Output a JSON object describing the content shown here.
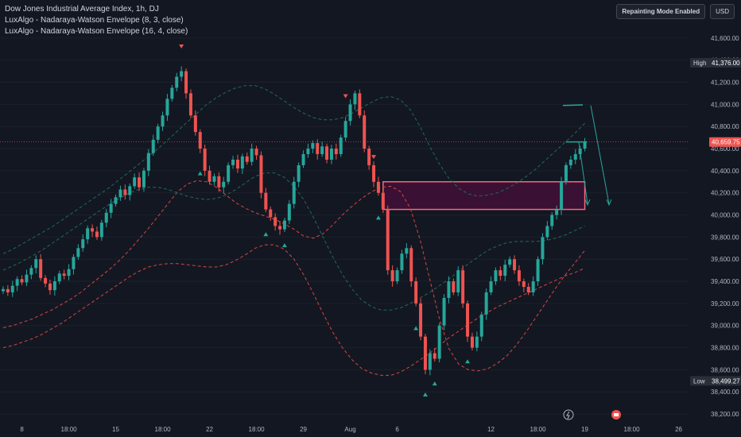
{
  "legend": {
    "title": "Dow Jones Industrial Average Index, 1h, DJ",
    "indicator1": "LuxAlgo - Nadaraya-Watson Envelope (8, 3, close)",
    "indicator2": "LuxAlgo - Nadaraya-Watson Envelope (16, 4, close)"
  },
  "top_right": {
    "mode_label": "Repainting Mode Enabled",
    "currency": "USD"
  },
  "colors": {
    "background": "#131722",
    "up": "#26a69a",
    "down": "#ef5350",
    "upper_band": "#1f6b57",
    "lower_band": "#d4473f",
    "zone_border": "#f26b7a",
    "zone_fill": "#3a1035",
    "text": "#b2b5be",
    "price_tag": "#ef5350",
    "high_low_tag": "#2a2e39"
  },
  "chart_data": {
    "type": "candlestick",
    "ylim": [
      38100,
      41800
    ],
    "y_ticks": [
      "41,600.00",
      "41,400.00",
      "41,200.00",
      "41,000.00",
      "40,800.00",
      "40,600.00",
      "40,400.00",
      "40,200.00",
      "40,000.00",
      "39,800.00",
      "39,600.00",
      "39,400.00",
      "39,200.00",
      "39,000.00",
      "38,800.00",
      "38,600.00",
      "38,400.00",
      "38,200.00"
    ],
    "y_tick_values": [
      41600,
      41400,
      41200,
      41000,
      40800,
      40600,
      40400,
      40200,
      40000,
      39800,
      39600,
      39400,
      39200,
      39000,
      38800,
      38600,
      38400,
      38200
    ],
    "x_labels": [
      "8",
      "18:00",
      "15",
      "18:00",
      "22",
      "18:00",
      "29",
      "Aug",
      "6",
      "12",
      "18:00",
      "19",
      "18:00",
      "26"
    ],
    "x_label_bars": [
      4,
      14,
      24,
      34,
      44,
      54,
      64,
      74,
      84,
      104,
      114,
      124,
      134,
      144
    ],
    "high": {
      "label": "High",
      "value": "41,376.00",
      "num": 41376
    },
    "low": {
      "label": "Low",
      "value": "38,499.27",
      "num": 38499.27
    },
    "last": {
      "value": "40,659.75",
      "num": 40659.75
    },
    "prices": [
      39330,
      39300,
      39360,
      39420,
      39390,
      39460,
      39520,
      39600,
      39430,
      39380,
      39320,
      39400,
      39470,
      39450,
      39510,
      39620,
      39700,
      39780,
      39880,
      39850,
      39800,
      39930,
      40020,
      40100,
      40160,
      40230,
      40180,
      40260,
      40340,
      40250,
      40400,
      40560,
      40680,
      40800,
      40900,
      41050,
      41150,
      41250,
      41300,
      41100,
      40900,
      40750,
      40600,
      40400,
      40300,
      40350,
      40250,
      40300,
      40450,
      40500,
      40420,
      40530,
      40480,
      40600,
      40540,
      40200,
      40050,
      39980,
      39900,
      39870,
      39950,
      40100,
      40300,
      40450,
      40550,
      40600,
      40650,
      40550,
      40620,
      40500,
      40600,
      40550,
      40700,
      40850,
      41000,
      41100,
      40900,
      40600,
      40450,
      40300,
      40200,
      40050,
      39500,
      39400,
      39500,
      39650,
      39700,
      39400,
      39200,
      38900,
      38600,
      38750,
      38700,
      39000,
      39250,
      39400,
      39300,
      39500,
      39200,
      38900,
      38800,
      38900,
      39100,
      39300,
      39400,
      39500,
      39450,
      39550,
      39600,
      39500,
      39400,
      39350,
      39300,
      39400,
      39600,
      39800,
      39900,
      40000,
      40050,
      40300,
      40450,
      40500,
      40550,
      40600,
      40660
    ],
    "upper_band_8_3": [
      39650,
      39690,
      39740,
      39790,
      39840,
      39890,
      39950,
      40010,
      40070,
      40130,
      40190,
      40250,
      40320,
      40390,
      40460,
      40530,
      40600,
      40680,
      40760,
      40840,
      40920,
      41000,
      41060,
      41110,
      41150,
      41170,
      41170,
      41140,
      41090,
      41030,
      40970,
      40920,
      40880,
      40860,
      40860,
      40880,
      40920,
      40970,
      41020,
      41060,
      41070,
      41040,
      40950,
      40800,
      40620,
      40460,
      40330,
      40240,
      40190,
      40170,
      40180,
      40200,
      40240,
      40290,
      40350,
      40420,
      40500,
      40580,
      40660,
      40740,
      40830
    ],
    "lower_band_8_3": [
      38980,
      39000,
      39030,
      39060,
      39100,
      39140,
      39190,
      39240,
      39300,
      39370,
      39440,
      39510,
      39590,
      39680,
      39780,
      39880,
      39990,
      40100,
      40210,
      40280,
      40310,
      40300,
      40250,
      40180,
      40110,
      40060,
      40020,
      39990,
      39960,
      39920,
      39870,
      39810,
      39790,
      39830,
      39910,
      40000,
      40080,
      40150,
      40210,
      40250,
      40260,
      40210,
      40060,
      39780,
      39420,
      39060,
      38790,
      38650,
      38600,
      38590,
      38610,
      38660,
      38730,
      38830,
      38950,
      39080,
      39210,
      39340,
      39460,
      39570,
      39680
    ],
    "upper_band_16_4": [
      39500,
      39540,
      39580,
      39630,
      39680,
      39740,
      39800,
      39860,
      39920,
      39980,
      40040,
      40100,
      40150,
      40200,
      40230,
      40250,
      40250,
      40230,
      40200,
      40170,
      40150,
      40140,
      40150,
      40180,
      40230,
      40290,
      40350,
      40380,
      40380,
      40340,
      40260,
      40140,
      39980,
      39800,
      39620,
      39460,
      39330,
      39230,
      39170,
      39140,
      39140,
      39160,
      39200,
      39250,
      39300,
      39360,
      39420,
      39490,
      39560,
      39620,
      39680,
      39720,
      39750,
      39760,
      39760,
      39760,
      39770,
      39790,
      39820,
      39860,
      39900
    ],
    "lower_band_16_4": [
      38800,
      38820,
      38850,
      38880,
      38920,
      38970,
      39020,
      39080,
      39140,
      39200,
      39260,
      39320,
      39380,
      39440,
      39490,
      39530,
      39550,
      39560,
      39560,
      39550,
      39540,
      39530,
      39530,
      39550,
      39590,
      39640,
      39700,
      39730,
      39730,
      39690,
      39600,
      39460,
      39290,
      39110,
      38940,
      38800,
      38690,
      38610,
      38570,
      38550,
      38550,
      38580,
      38630,
      38690,
      38750,
      38820,
      38890,
      38950,
      39010,
      39070,
      39120,
      39170,
      39210,
      39250,
      39290,
      39330,
      39370,
      39410,
      39450,
      39480,
      39520
    ],
    "zone": {
      "y_top": 40300,
      "y_bottom": 40050,
      "x_start_bar": 81,
      "x_end_bar": 124
    }
  }
}
